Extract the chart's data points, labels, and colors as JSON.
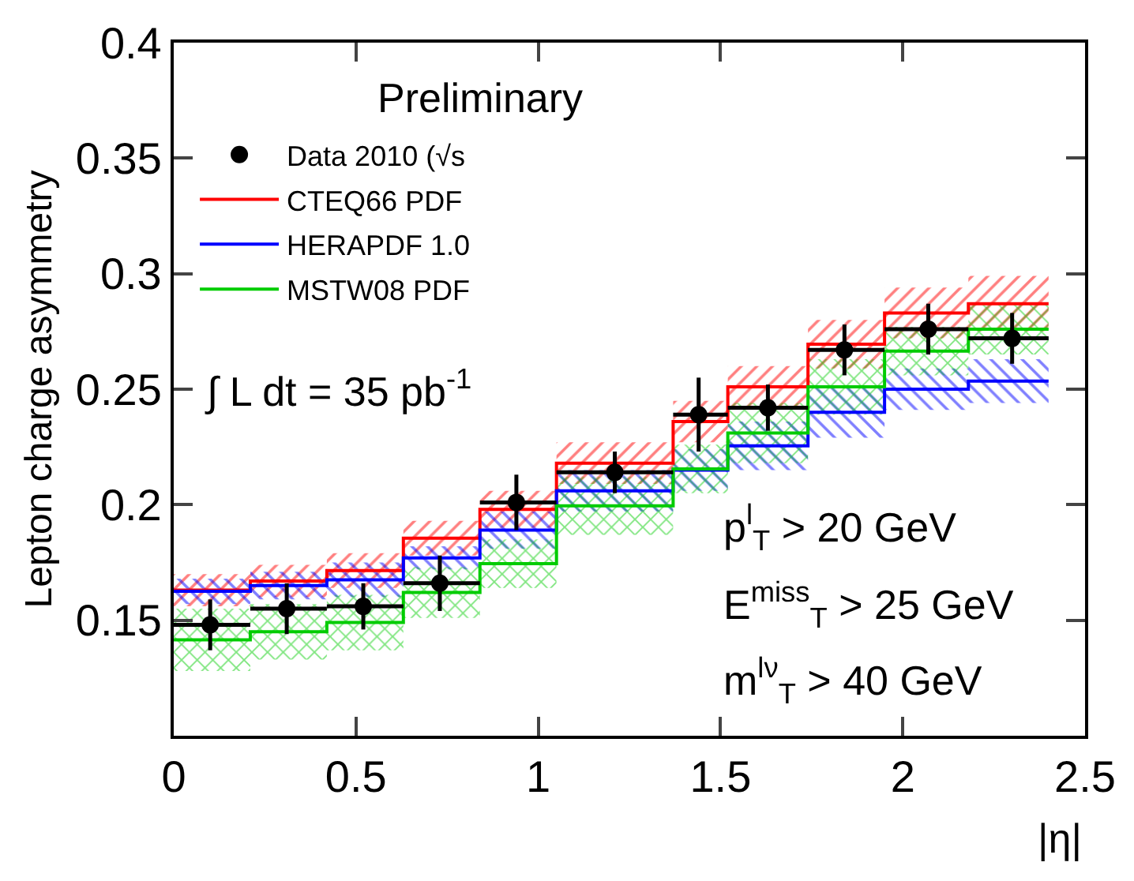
{
  "chart_data": {
    "type": "scatter",
    "xlabel": "|η|",
    "ylabel": "Lepton charge asymmetry",
    "xlim": [
      0,
      2.5
    ],
    "xticks": [
      0,
      0.5,
      1,
      1.5,
      2,
      2.5
    ],
    "ylim": [
      0.1,
      0.4
    ],
    "yticks": [
      0.15,
      0.2,
      0.25,
      0.3,
      0.35,
      0.4
    ],
    "legend": "top left",
    "annotations": [
      "Preliminary",
      "∫ L dt = 35 pb$^{-1}$",
      "p$^{l}$$_{T}$ > 20 GeV",
      "E$^{miss}$$_{T}$ > 25 GeV",
      "m$^{lν}$$_{T}$ > 40 GeV"
    ],
    "series": [
      {
        "name": "Data 2010 (√s",
        "marker": "circle",
        "color": "#000000",
        "x": [
          0.1,
          0.31,
          0.52,
          0.73,
          0.94,
          1.21,
          1.44,
          1.63,
          1.84,
          2.07,
          2.3
        ],
        "values": [
          0.148,
          0.155,
          0.156,
          0.166,
          0.201,
          0.214,
          0.239,
          0.242,
          0.267,
          0.276,
          0.272
        ],
        "errors": [
          0.011,
          0.011,
          0.01,
          0.012,
          0.012,
          0.009,
          0.016,
          0.01,
          0.011,
          0.011,
          0.011
        ],
        "xerrors": [
          [
            0,
            0.21
          ],
          [
            0.21,
            0.42
          ],
          [
            0.42,
            0.63
          ],
          [
            0.63,
            0.84
          ],
          [
            0.84,
            1.05
          ],
          [
            1.05,
            1.37
          ],
          [
            1.37,
            1.52
          ],
          [
            1.52,
            1.74
          ],
          [
            1.74,
            1.95
          ],
          [
            1.95,
            2.18
          ],
          [
            2.18,
            2.4
          ]
        ]
      },
      {
        "name": "CTEQ66 PDF",
        "type": "step",
        "marker": "none",
        "color": "#ff0000",
        "x": [
          0,
          0.21,
          0.42,
          0.63,
          0.84,
          1.05,
          1.37,
          1.52,
          1.74,
          1.95,
          2.18,
          2.4
        ],
        "values": [
          0.163,
          0.167,
          0.1715,
          0.1855,
          0.198,
          0.218,
          0.236,
          0.251,
          0.2695,
          0.283,
          0.287,
          0.287
        ],
        "lower": [
          0.156,
          0.16,
          0.164,
          0.178,
          0.19,
          0.209,
          0.227,
          0.242,
          0.259,
          0.272,
          0.275,
          0.275
        ],
        "upper": [
          0.17,
          0.174,
          0.179,
          0.193,
          0.206,
          0.227,
          0.245,
          0.26,
          0.28,
          0.294,
          0.299,
          0.299
        ]
      },
      {
        "name": "HERAPDF 1.0",
        "type": "step",
        "marker": "none",
        "color": "#0000ff",
        "x": [
          0,
          0.21,
          0.42,
          0.63,
          0.84,
          1.05,
          1.37,
          1.52,
          1.74,
          1.95,
          2.18,
          2.4
        ],
        "values": [
          0.1625,
          0.165,
          0.1675,
          0.177,
          0.189,
          0.206,
          0.215,
          0.2255,
          0.24,
          0.25,
          0.2535,
          0.2535
        ],
        "lower": [
          0.157,
          0.159,
          0.16,
          0.172,
          0.181,
          0.197,
          0.206,
          0.215,
          0.229,
          0.241,
          0.244,
          0.244
        ],
        "upper": [
          0.168,
          0.171,
          0.175,
          0.182,
          0.197,
          0.215,
          0.224,
          0.236,
          0.251,
          0.259,
          0.263,
          0.263
        ]
      },
      {
        "name": "MSTW08 PDF",
        "type": "step",
        "marker": "none",
        "color": "#00cc00",
        "x": [
          0,
          0.21,
          0.42,
          0.63,
          0.84,
          1.05,
          1.37,
          1.52,
          1.74,
          1.95,
          2.18,
          2.4
        ],
        "values": [
          0.1415,
          0.145,
          0.149,
          0.162,
          0.1745,
          0.1995,
          0.2155,
          0.231,
          0.251,
          0.2665,
          0.276,
          0.276
        ],
        "lower": [
          0.128,
          0.133,
          0.137,
          0.151,
          0.164,
          0.187,
          0.205,
          0.218,
          0.239,
          0.256,
          0.265,
          0.265
        ],
        "upper": [
          0.155,
          0.157,
          0.161,
          0.173,
          0.185,
          0.212,
          0.226,
          0.244,
          0.263,
          0.277,
          0.287,
          0.287
        ]
      }
    ]
  }
}
